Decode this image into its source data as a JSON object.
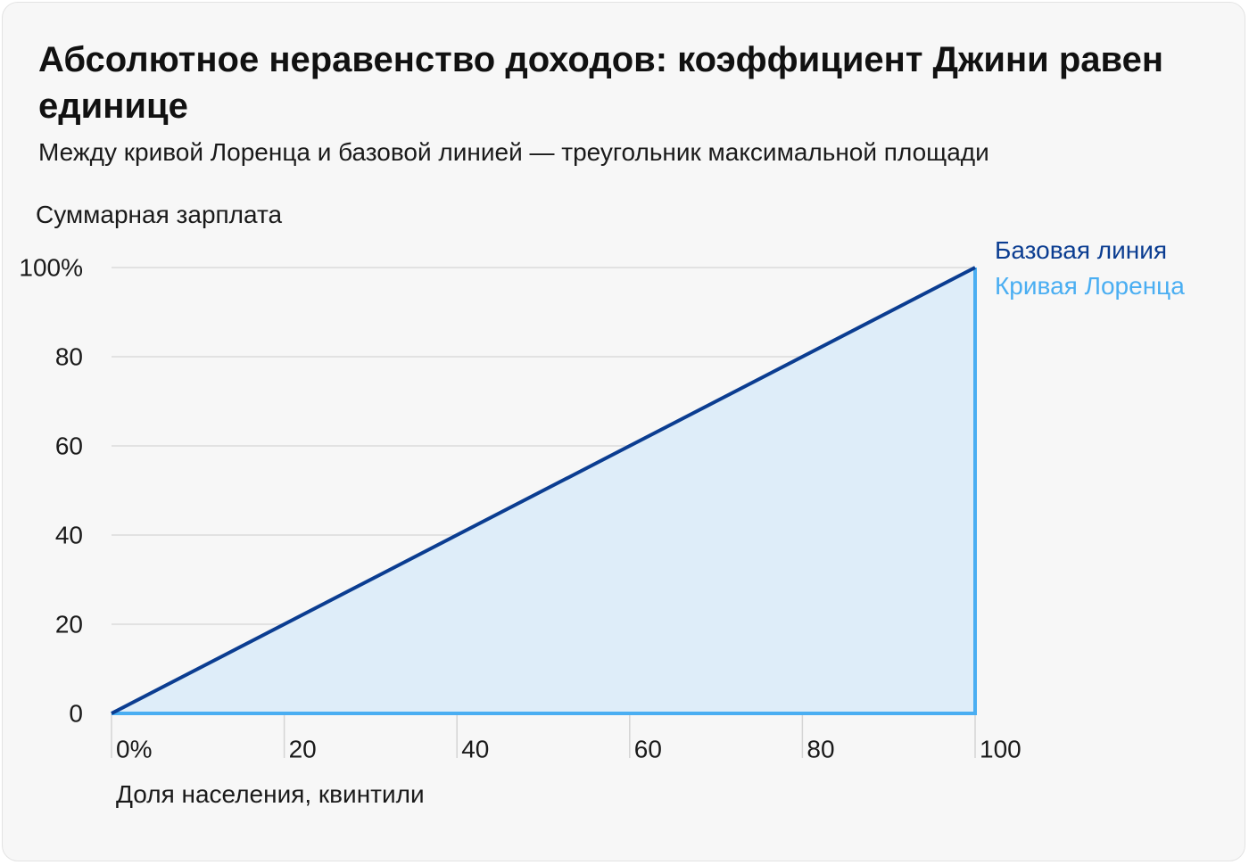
{
  "title": "Абсолютное неравенство доходов: коэффициент Джини равен единице",
  "subtitle": "Между кривой Лоренца и базовой линией — треугольник максимальной площади",
  "chart_data": {
    "type": "line",
    "title": "Абсолютное неравенство доходов: коэффициент Джини равен единице",
    "subtitle": "Между кривой Лоренца и базовой линией — треугольник максимальной площади",
    "xlabel": "Доля населения, квинтили",
    "ylabel": "Суммарная зарплата",
    "xlim": [
      0,
      100
    ],
    "ylim": [
      0,
      100
    ],
    "x_ticks": [
      "0%",
      "20",
      "40",
      "60",
      "80",
      "100"
    ],
    "y_ticks": [
      "100%",
      "80",
      "60",
      "40",
      "20",
      "0"
    ],
    "grid": true,
    "legend_position": "top-right",
    "series": [
      {
        "name": "Базовая линия",
        "color": "#0b3d91",
        "points": [
          [
            0,
            0
          ],
          [
            100,
            100
          ]
        ]
      },
      {
        "name": "Кривая Лоренца",
        "color": "#4aaef2",
        "points": [
          [
            0,
            0
          ],
          [
            100,
            0
          ],
          [
            100,
            100
          ]
        ]
      }
    ],
    "fill_color": "#deedf9"
  }
}
